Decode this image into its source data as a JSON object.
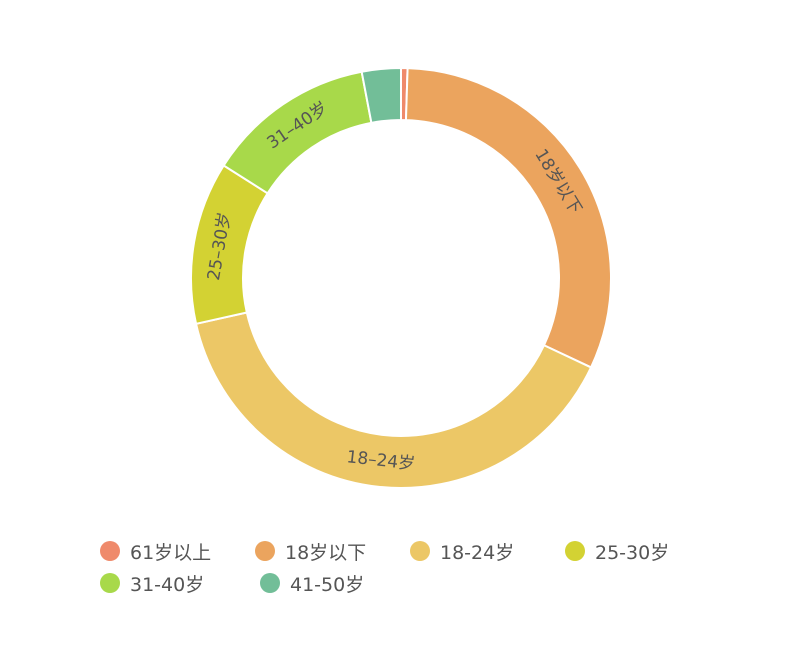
{
  "chart_data": {
    "type": "pie",
    "donut": true,
    "categories": [
      "61岁以上",
      "18岁以下",
      "18-24岁",
      "25-30岁",
      "31-40岁",
      "41-50岁"
    ],
    "values": [
      0.5,
      31.5,
      39.5,
      12.5,
      13.0,
      3.0
    ],
    "colors": [
      "#ef8a6b",
      "#eba45e",
      "#ecc766",
      "#d3d233",
      "#a8d94a",
      "#72be98"
    ],
    "slice_labels": [
      "",
      "18岁以下",
      "18–24岁",
      "25–30岁",
      "31–40岁",
      ""
    ],
    "legend_position": "bottom"
  },
  "legend": {
    "items": [
      {
        "label": "61岁以上",
        "color": "#ef8a6b"
      },
      {
        "label": "18岁以下",
        "color": "#eba45e"
      },
      {
        "label": "18-24岁",
        "color": "#ecc766"
      },
      {
        "label": "25-30岁",
        "color": "#d3d233"
      },
      {
        "label": "31-40岁",
        "color": "#a8d94a"
      },
      {
        "label": "41-50岁",
        "color": "#72be98"
      }
    ]
  }
}
